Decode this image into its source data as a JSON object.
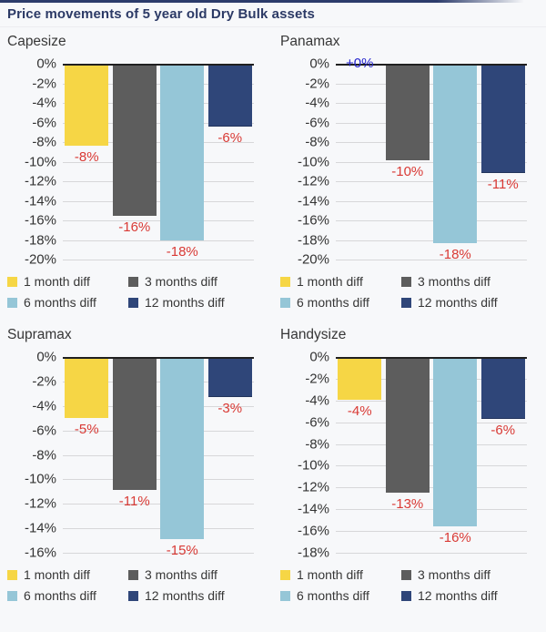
{
  "page": {
    "title": "Price movements of 5 year old Dry Bulk assets"
  },
  "colors": {
    "background": "#f7f8fa",
    "page_title": "#2c3a66",
    "chart_title": "#373737",
    "tick_label": "#333333",
    "gridline": "#d7d7d9",
    "zero_line": "#202020",
    "negative_label": "#d93a35",
    "positive_label": "#2424cd",
    "top_border": "#2c3c6b"
  },
  "series": [
    {
      "name": "1 month diff",
      "color": "#f6d645"
    },
    {
      "name": "3 months diff",
      "color": "#5d5d5d"
    },
    {
      "name": "6 months diff",
      "color": "#95c6d7"
    },
    {
      "name": "12 months diff",
      "color": "#2f4679"
    }
  ],
  "chart_data": [
    {
      "type": "bar",
      "title": "Capesize",
      "categories": [
        "1 month diff",
        "3 months diff",
        "6 months diff",
        "12 months diff"
      ],
      "values": [
        -8,
        -16,
        -18,
        -6
      ],
      "plotted": [
        -8.4,
        -15.5,
        -18.0,
        -6.4
      ],
      "labels": [
        "-8%",
        "-16%",
        "-18%",
        "-6%"
      ],
      "label_types": [
        "negative",
        "negative",
        "negative",
        "negative"
      ],
      "ylim": [
        -20,
        0
      ],
      "yticks": [
        "0%",
        "-2%",
        "-4%",
        "-6%",
        "-8%",
        "-10%",
        "-12%",
        "-14%",
        "-16%",
        "-18%",
        "-20%"
      ],
      "legend_position": "bottom",
      "grid": true
    },
    {
      "type": "bar",
      "title": "Panamax",
      "categories": [
        "1 month diff",
        "3 months diff",
        "6 months diff",
        "12 months diff"
      ],
      "values": [
        0,
        -10,
        -18,
        -11
      ],
      "plotted": [
        0,
        -9.9,
        -18.3,
        -11.2
      ],
      "labels": [
        "+0%",
        "-10%",
        "-18%",
        "-11%"
      ],
      "label_types": [
        "positive",
        "negative",
        "negative",
        "negative"
      ],
      "ylim": [
        -20,
        0
      ],
      "yticks": [
        "0%",
        "-2%",
        "-4%",
        "-6%",
        "-8%",
        "-10%",
        "-12%",
        "-14%",
        "-16%",
        "-18%",
        "-20%"
      ],
      "legend_position": "bottom",
      "grid": true
    },
    {
      "type": "bar",
      "title": "Supramax",
      "categories": [
        "1 month diff",
        "3 months diff",
        "6 months diff",
        "12 months diff"
      ],
      "values": [
        -5,
        -11,
        -15,
        -3
      ],
      "plotted": [
        -5.0,
        -10.9,
        -14.9,
        -3.3
      ],
      "labels": [
        "-5%",
        "-11%",
        "-15%",
        "-3%"
      ],
      "label_types": [
        "negative",
        "negative",
        "negative",
        "negative"
      ],
      "ylim": [
        -16,
        0
      ],
      "yticks": [
        "0%",
        "-2%",
        "-4%",
        "-6%",
        "-8%",
        "-10%",
        "-12%",
        "-14%",
        "-16%"
      ],
      "legend_position": "bottom",
      "grid": true
    },
    {
      "type": "bar",
      "title": "Handysize",
      "categories": [
        "1 month diff",
        "3 months diff",
        "6 months diff",
        "12 months diff"
      ],
      "values": [
        -4,
        -13,
        -16,
        -6
      ],
      "plotted": [
        -3.9,
        -12.5,
        -15.6,
        -5.7
      ],
      "labels": [
        "-4%",
        "-13%",
        "-16%",
        "-6%"
      ],
      "label_types": [
        "negative",
        "negative",
        "negative",
        "negative"
      ],
      "ylim": [
        -18,
        0
      ],
      "yticks": [
        "0%",
        "-2%",
        "-4%",
        "-6%",
        "-8%",
        "-10%",
        "-12%",
        "-14%",
        "-16%",
        "-18%"
      ],
      "legend_position": "bottom",
      "grid": true
    }
  ]
}
